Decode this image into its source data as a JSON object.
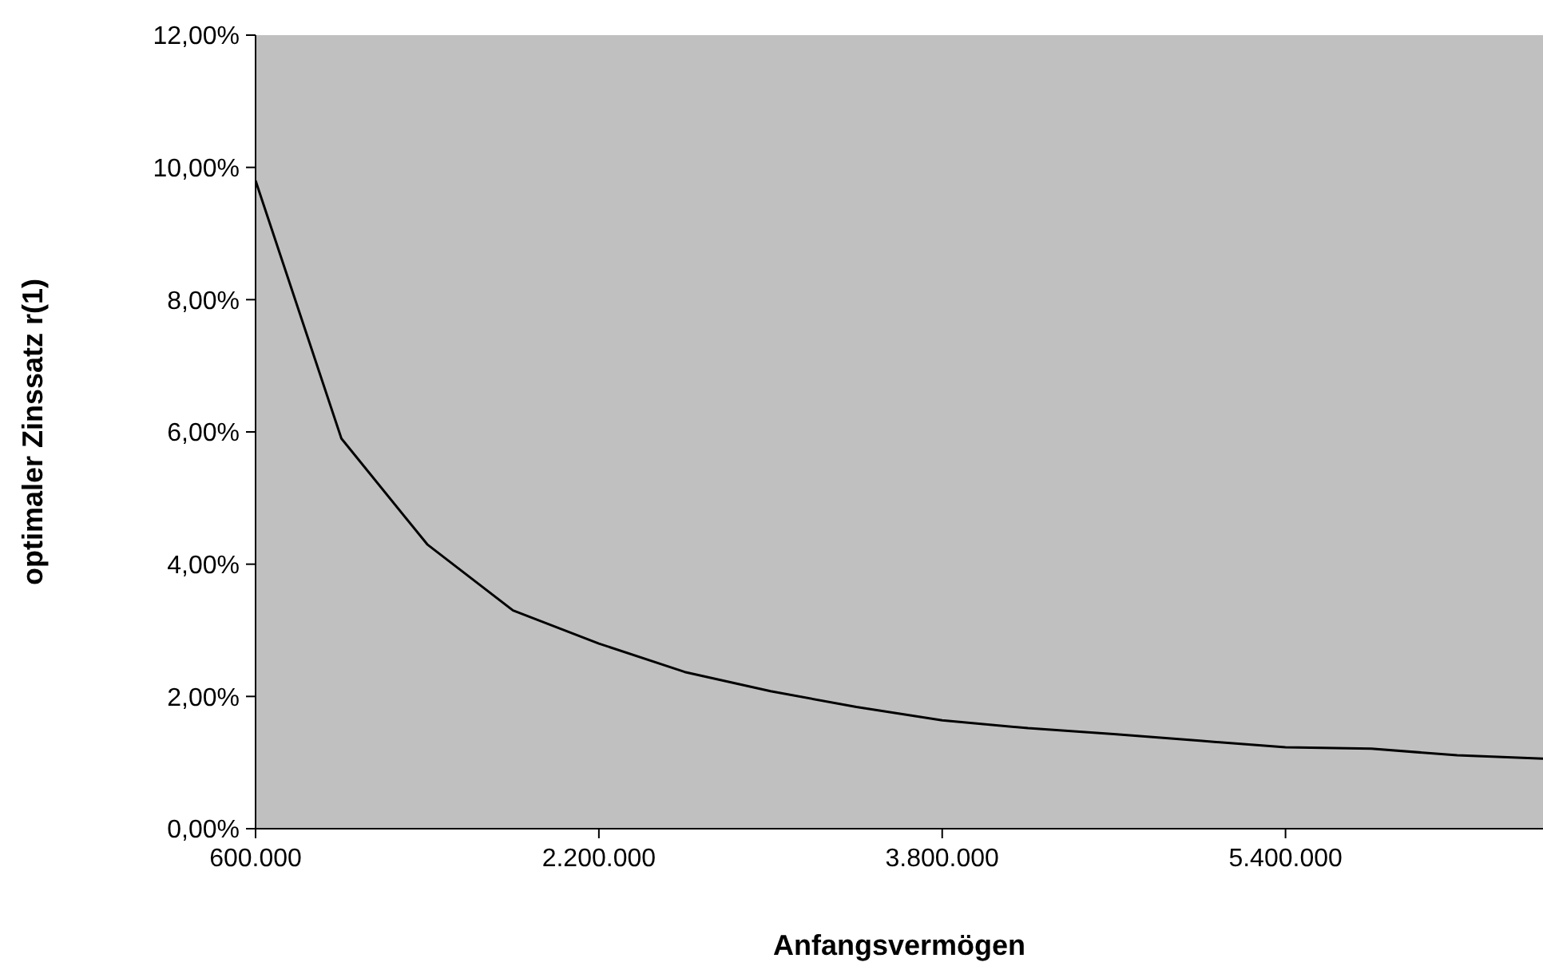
{
  "chart_data": {
    "type": "line",
    "xlabel": "Anfangsvermögen",
    "ylabel": "optimaler Zinssatz r(1)",
    "x": [
      600000,
      1000000,
      1400000,
      1800000,
      2200000,
      2600000,
      3000000,
      3400000,
      3800000,
      4200000,
      4600000,
      5000000,
      5400000,
      5800000,
      6200000,
      6600000
    ],
    "series": [
      {
        "color": "#000000",
        "values": [
          9.8,
          5.9,
          4.3,
          3.3,
          2.8,
          2.37,
          2.08,
          1.84,
          1.64,
          1.52,
          1.43,
          1.33,
          1.23,
          1.21,
          1.11,
          1.06
        ]
      }
    ],
    "xlim": [
      600000,
      6600000
    ],
    "xticks": [
      {
        "value": 600000,
        "label": "600.000"
      },
      {
        "value": 2200000,
        "label": "2.200.000"
      },
      {
        "value": 3800000,
        "label": "3.800.000"
      },
      {
        "value": 5400000,
        "label": "5.400.000"
      }
    ],
    "ylim": [
      0,
      12
    ],
    "yticks": [
      {
        "value": 0,
        "label": "0,00%"
      },
      {
        "value": 2,
        "label": "2,00%"
      },
      {
        "value": 4,
        "label": "4,00%"
      },
      {
        "value": 6,
        "label": "6,00%"
      },
      {
        "value": 8,
        "label": "8,00%"
      },
      {
        "value": 10,
        "label": "10,00%"
      },
      {
        "value": 12,
        "label": "12,00%"
      }
    ],
    "grid": false,
    "legend": false,
    "marker": "none",
    "line_style": "solid"
  }
}
